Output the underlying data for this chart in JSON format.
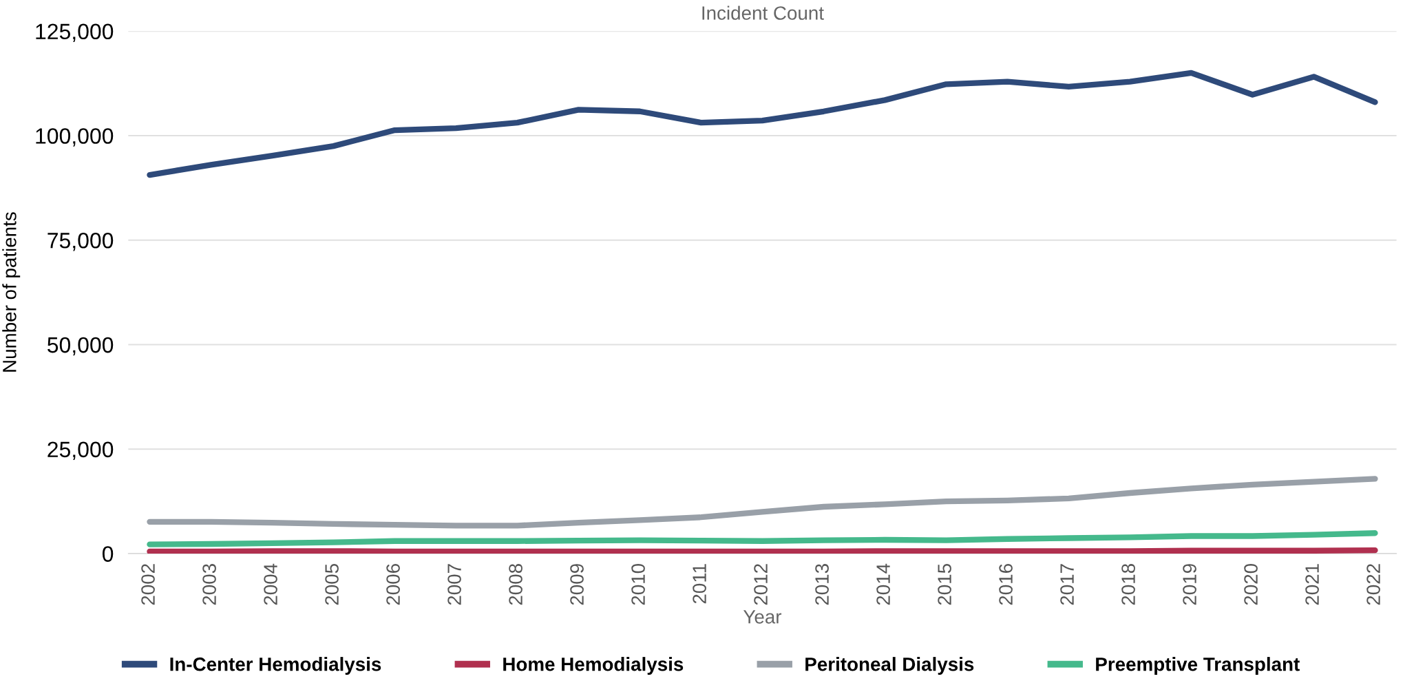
{
  "chart_data": {
    "type": "line",
    "title": "Incident Count",
    "xlabel": "Year",
    "ylabel": "Number of patients",
    "categories": [
      "2002",
      "2003",
      "2004",
      "2005",
      "2006",
      "2007",
      "2008",
      "2009",
      "2010",
      "2011",
      "2012",
      "2013",
      "2014",
      "2015",
      "2016",
      "2017",
      "2018",
      "2019",
      "2020",
      "2021",
      "2022"
    ],
    "series": [
      {
        "name": "In-Center Hemodialysis",
        "color": "#2e4a7a",
        "values": [
          90600,
          93000,
          95200,
          97500,
          101300,
          101800,
          103100,
          106200,
          105800,
          103100,
          103600,
          105800,
          108500,
          112300,
          112900,
          111700,
          112900,
          115000,
          109800,
          114100,
          108000
        ]
      },
      {
        "name": "Home Hemodialysis",
        "color": "#b0304f",
        "values": [
          500,
          500,
          600,
          600,
          500,
          500,
          500,
          500,
          500,
          500,
          500,
          500,
          600,
          600,
          600,
          600,
          600,
          700,
          700,
          700,
          800
        ]
      },
      {
        "name": "Peritoneal Dialysis",
        "color": "#99a0a8",
        "values": [
          7600,
          7600,
          7400,
          7100,
          6900,
          6700,
          6700,
          7400,
          8000,
          8700,
          10000,
          11200,
          11800,
          12500,
          12700,
          13200,
          14500,
          15600,
          16500,
          17200,
          17900
        ]
      },
      {
        "name": "Preemptive Transplant",
        "color": "#45b98c",
        "values": [
          2200,
          2300,
          2500,
          2700,
          3000,
          3000,
          3000,
          3100,
          3200,
          3100,
          3000,
          3200,
          3300,
          3200,
          3500,
          3700,
          3900,
          4200,
          4200,
          4500,
          4900
        ]
      }
    ],
    "ylim": [
      0,
      125000
    ],
    "yticks": [
      {
        "value": 0,
        "label": "0"
      },
      {
        "value": 25000,
        "label": "25,000"
      },
      {
        "value": 50000,
        "label": "50,000"
      },
      {
        "value": 75000,
        "label": "75,000"
      },
      {
        "value": 100000,
        "label": "100,000"
      },
      {
        "value": 125000,
        "label": "125,000"
      }
    ],
    "grid": "y",
    "legend": "bottom",
    "marker": "none",
    "line_style": "solid"
  }
}
